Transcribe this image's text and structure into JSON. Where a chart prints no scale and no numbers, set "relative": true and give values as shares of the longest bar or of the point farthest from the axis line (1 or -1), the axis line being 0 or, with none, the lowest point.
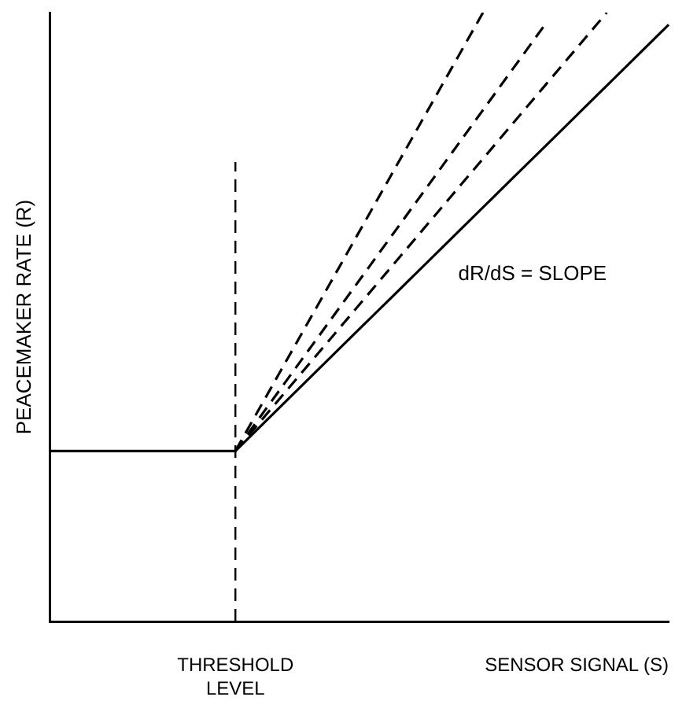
{
  "chart_data": {
    "type": "line",
    "relative": true,
    "xlabel": "SENSOR SIGNAL (S)",
    "ylabel": "PEACEMAKER RATE (R)",
    "tick_labels": false,
    "grid": false,
    "legend": false,
    "marker": "none",
    "categories": [
      null,
      null,
      null,
      null,
      null,
      null,
      null,
      null,
      null,
      null,
      null,
      null,
      null,
      null,
      null,
      null,
      null,
      null,
      null,
      null,
      null
    ],
    "series": [
      {
        "color": "#000000",
        "line_style": "solid",
        "values": [
          0.28,
          0.28,
          0.28,
          0.28,
          0.28,
          0.28,
          0.28,
          0.33,
          0.38,
          0.43,
          0.48,
          0.53,
          0.58,
          0.63,
          0.68,
          0.73,
          0.78,
          0.83,
          0.88,
          0.93,
          0.98
        ]
      },
      {
        "color": "#000000",
        "line_style": "dashed",
        "values": [
          null,
          null,
          null,
          null,
          null,
          null,
          0.28,
          0.37,
          0.46,
          0.55,
          0.64,
          0.73,
          0.82,
          0.91,
          1,
          null,
          null,
          null,
          null,
          null,
          null
        ]
      },
      {
        "color": "#000000",
        "line_style": "dashed",
        "values": [
          null,
          null,
          null,
          null,
          null,
          null,
          0.28,
          0.35,
          0.42,
          0.49,
          0.56,
          0.63,
          0.7,
          0.77,
          0.84,
          0.91,
          0.98,
          null,
          null,
          null,
          null
        ]
      },
      {
        "color": "#000000",
        "line_style": "dashed",
        "values": [
          null,
          null,
          null,
          null,
          null,
          null,
          0.28,
          0.34,
          0.4,
          0.46,
          0.52,
          0.58,
          0.64,
          0.7,
          0.76,
          0.82,
          0.88,
          0.94,
          1,
          null,
          null
        ]
      }
    ],
    "ref_lines": [
      {
        "axis": "x",
        "label": "THRESHOLD LEVEL",
        "color": "#000000",
        "line_style": "dashed"
      }
    ],
    "annotations": [
      "dR/dS = SLOPE"
    ]
  }
}
